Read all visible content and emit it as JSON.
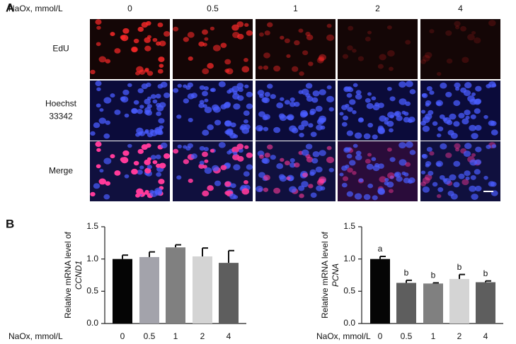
{
  "panel_a": {
    "label": "A",
    "x_label": "NaOx, mmol/L",
    "concentrations": [
      "0",
      "0.5",
      "1",
      "2",
      "4"
    ],
    "rows": [
      [
        "EdU"
      ],
      [
        "Hoechst",
        "33342"
      ],
      [
        "Merge"
      ]
    ]
  },
  "panel_b": {
    "label": "B"
  },
  "chart_data": [
    {
      "type": "bar",
      "y_label": "Relative mRNA level of",
      "y_label_gene": "CCND1",
      "x_label": "NaOx, mmol/L",
      "categories": [
        "0",
        "0.5",
        "1",
        "2",
        "4"
      ],
      "values": [
        1.0,
        1.03,
        1.18,
        1.04,
        0.94
      ],
      "errors": [
        0.06,
        0.08,
        0.04,
        0.13,
        0.19
      ],
      "colors": [
        "#050505",
        "#a3a3ab",
        "#808080",
        "#d4d4d4",
        "#5e5e5e"
      ],
      "ylim": [
        0,
        1.5
      ],
      "yticks": [
        {
          "value": 0,
          "label": "0.0"
        },
        {
          "value": 0.5,
          "label": "0.5"
        },
        {
          "value": 1,
          "label": "1.0"
        },
        {
          "value": 1.5,
          "label": "1.5"
        }
      ]
    },
    {
      "type": "bar",
      "y_label": "Relative mRNA level of",
      "y_label_gene": "PCNA",
      "x_label": "NaOx, mmol/L",
      "categories": [
        "0",
        "0.5",
        "1",
        "2",
        "4"
      ],
      "values": [
        1.0,
        0.63,
        0.62,
        0.69,
        0.64
      ],
      "errors": [
        0.04,
        0.04,
        0.01,
        0.07,
        0.02
      ],
      "value_labels": [
        "a",
        "b",
        "b",
        "b",
        "b"
      ],
      "colors": [
        "#050505",
        "#5e5e5e",
        "#808080",
        "#d4d4d4",
        "#5e5e5e"
      ],
      "ylim": [
        0,
        1.5
      ],
      "yticks": [
        {
          "value": 0,
          "label": "0.0"
        },
        {
          "value": 0.5,
          "label": "0.5"
        },
        {
          "value": 1,
          "label": "1.0"
        },
        {
          "value": 1.5,
          "label": "1.5"
        }
      ]
    }
  ]
}
